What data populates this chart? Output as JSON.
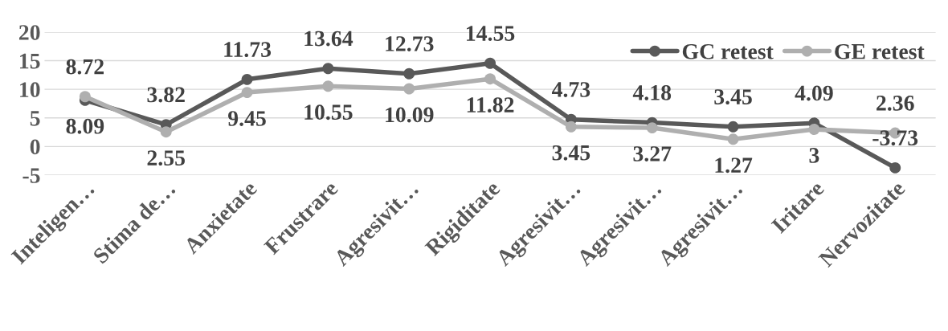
{
  "chart_data": {
    "type": "line",
    "categories": [
      "Inteligen…",
      "Stima de…",
      "Anxietate",
      "Frustrare",
      "Agresivit…",
      "Rigiditate",
      "Agresivit…",
      "Agresivit…",
      "Agresivit…",
      "Iritare",
      "Nervozitate"
    ],
    "series": [
      {
        "name": "GC retest",
        "color": "#595959",
        "values": [
          8.09,
          3.82,
          11.73,
          13.64,
          12.73,
          14.55,
          4.73,
          4.18,
          3.45,
          4.09,
          -3.73
        ]
      },
      {
        "name": "GE retest",
        "color": "#afafaf",
        "values": [
          8.72,
          2.55,
          9.45,
          10.55,
          10.09,
          11.82,
          3.45,
          3.27,
          1.27,
          3,
          2.36
        ]
      }
    ],
    "ylim": [
      -5,
      20
    ],
    "yticks": [
      -5,
      0,
      5,
      10,
      15,
      20
    ],
    "grid": "y",
    "legend": "top right",
    "marker": "circle",
    "line_style": "solid",
    "data_labels": true
  }
}
